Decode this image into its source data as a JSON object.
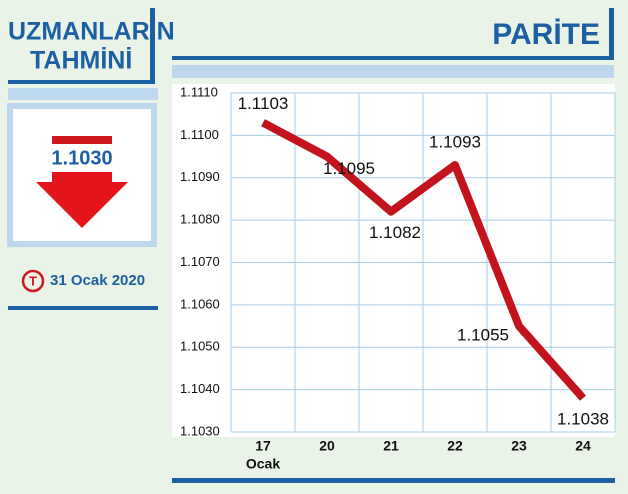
{
  "left_panel": {
    "title_line1": "UZMANLARIN",
    "title_line2": "TAHMİNİ",
    "forecast": "1.1030",
    "date_logo": "T",
    "date": "31 Ocak 2020"
  },
  "chart_data": {
    "type": "line",
    "title": "PARİTE",
    "categories": [
      "17",
      "20",
      "21",
      "22",
      "23",
      "24"
    ],
    "month_label": "Ocak",
    "values": [
      1.1103,
      1.1095,
      1.1082,
      1.1093,
      1.1055,
      1.1038
    ],
    "color": "#c3141e",
    "ylim": [
      1.103,
      1.111
    ],
    "yticks": [
      {
        "value": 1.111,
        "label": "1.1110"
      },
      {
        "value": 1.11,
        "label": "1.1100"
      },
      {
        "value": 1.109,
        "label": "1.1090"
      },
      {
        "value": 1.108,
        "label": "1.1080"
      },
      {
        "value": 1.107,
        "label": "1.1070"
      },
      {
        "value": 1.106,
        "label": "1.1060"
      },
      {
        "value": 1.105,
        "label": "1.1050"
      },
      {
        "value": 1.104,
        "label": "1.1040"
      },
      {
        "value": 1.103,
        "label": "1.1030"
      }
    ],
    "grid": true
  }
}
